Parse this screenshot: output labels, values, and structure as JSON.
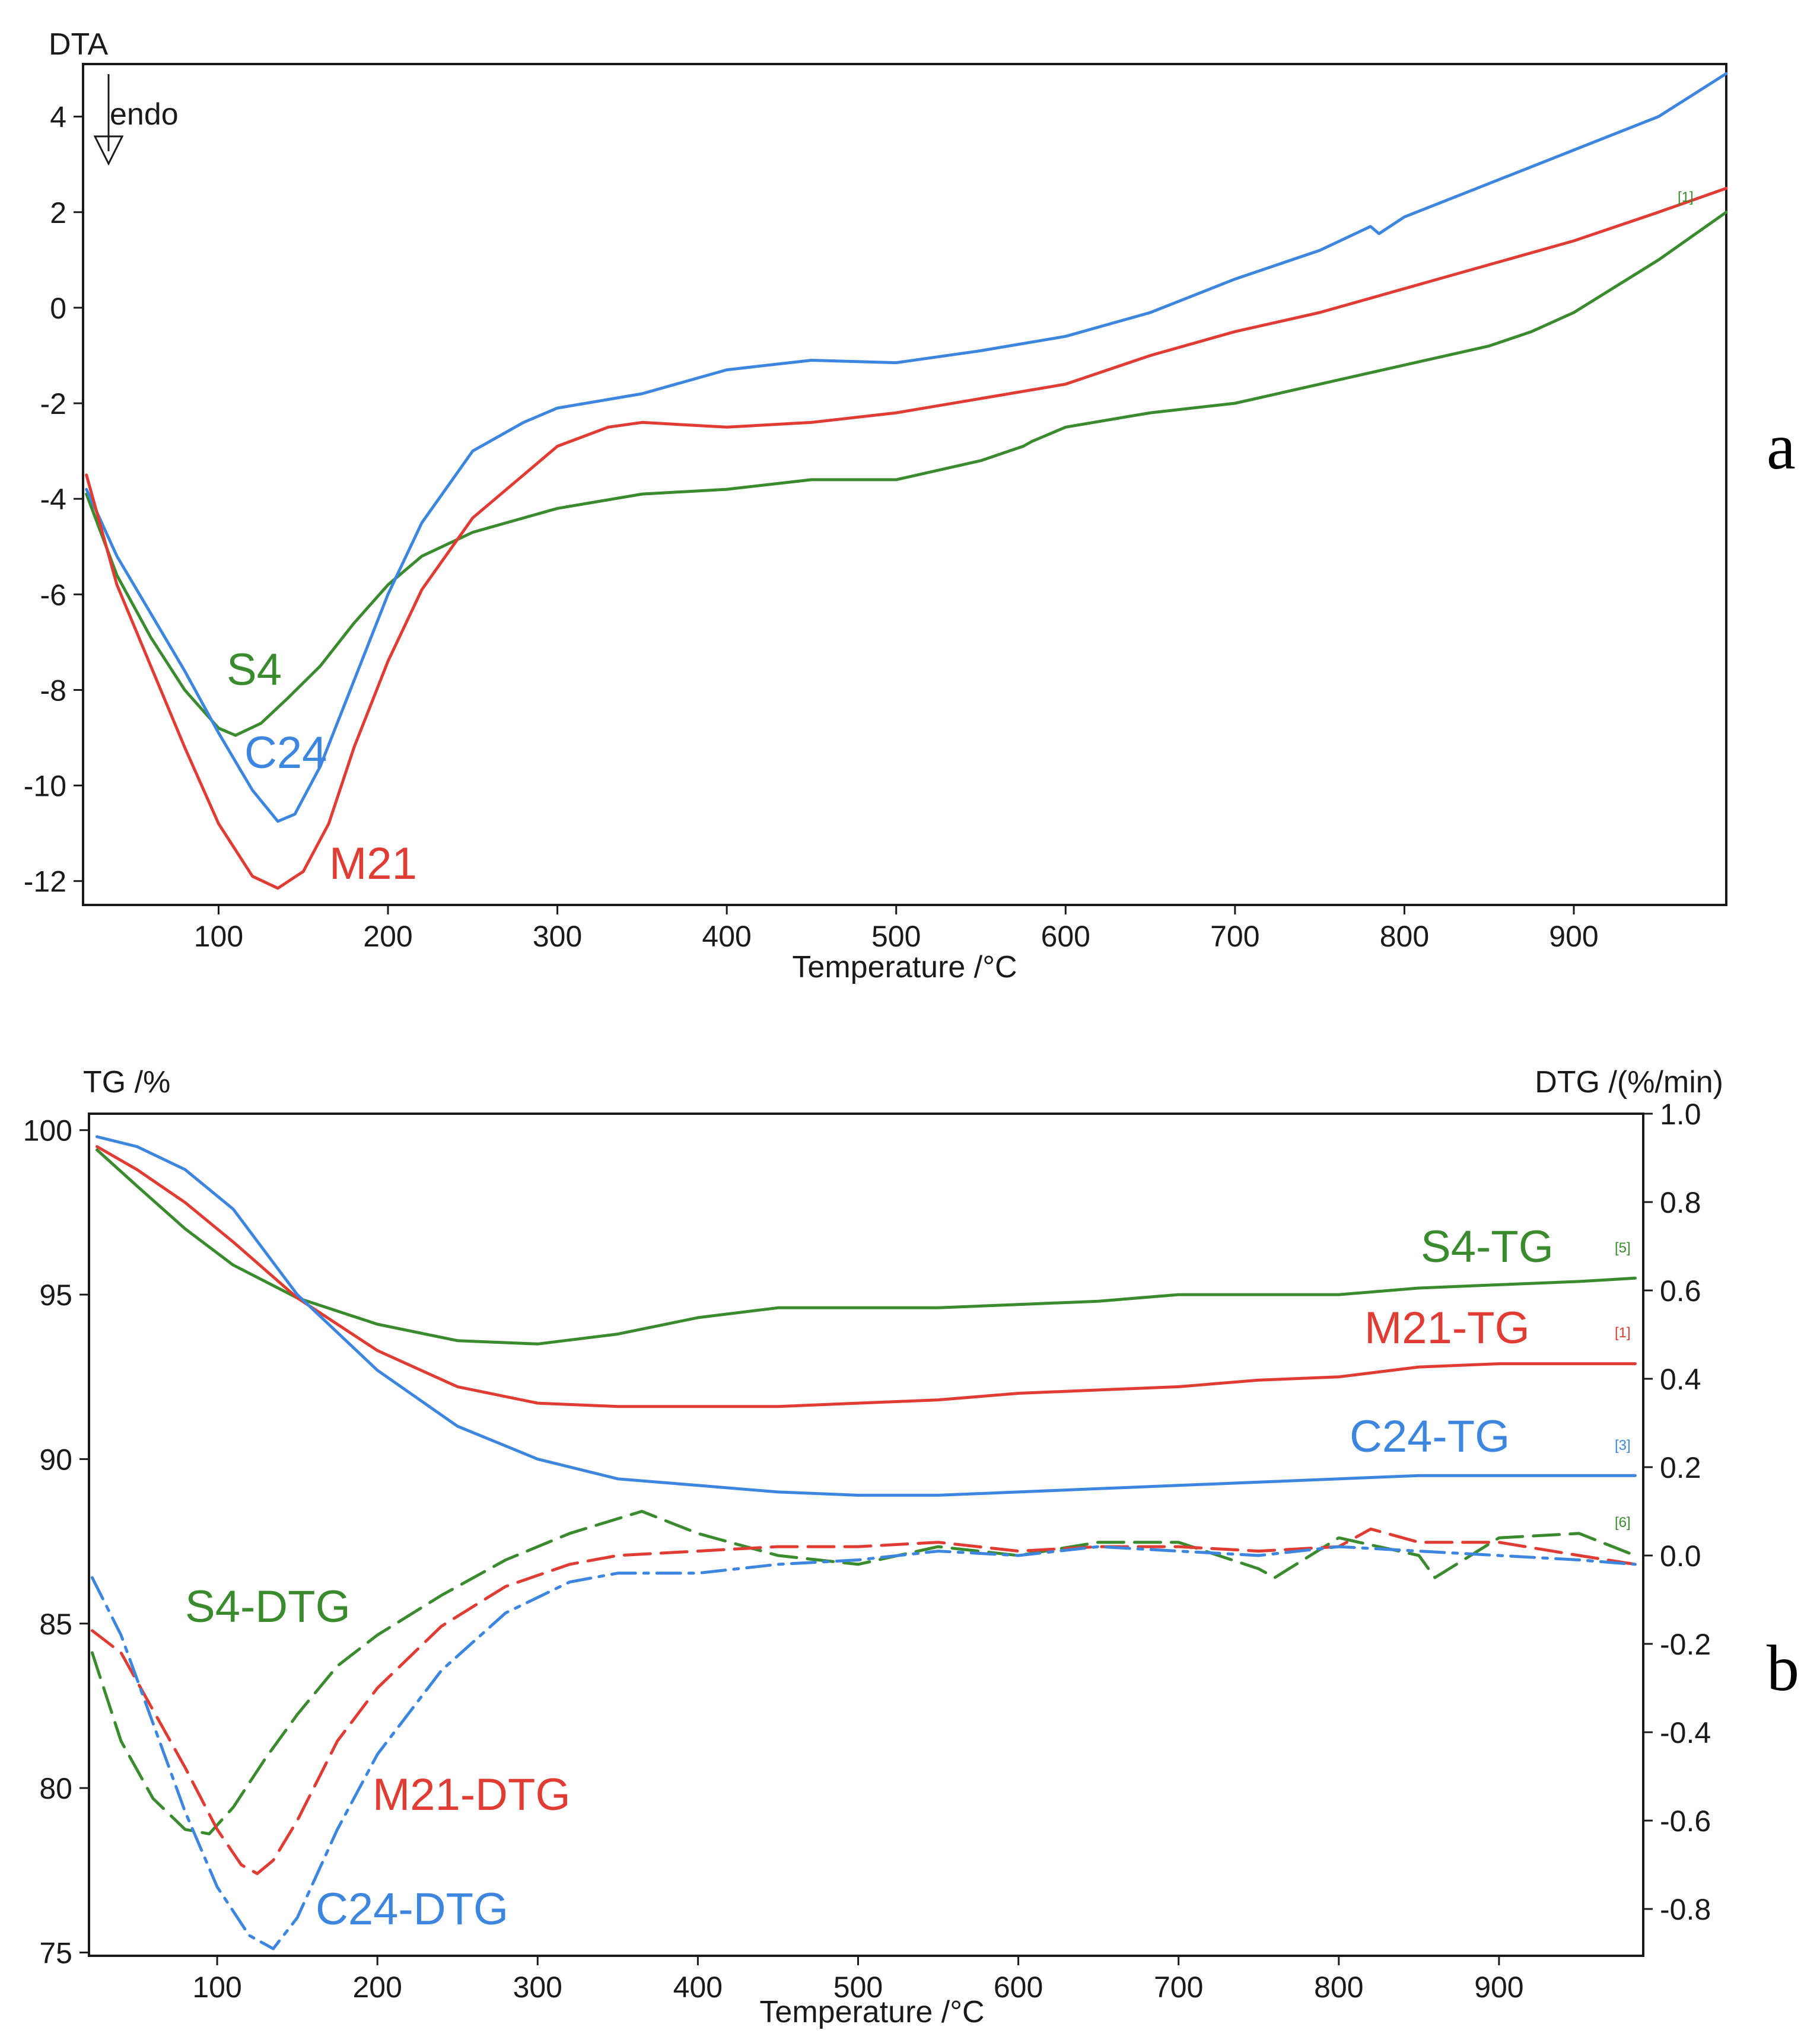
{
  "colors": {
    "green": "#3a8a2e",
    "red": "#e03c33",
    "blue": "#3d86e0",
    "axis": "#1a1a1a"
  },
  "chart_data": [
    {
      "type": "line",
      "panel_label": "a",
      "xlabel": "Temperature /°C",
      "ylabel": "DTA",
      "annotation": "endo",
      "end_marker": "[1]",
      "xlim": [
        20,
        990
      ],
      "ylim": [
        -12.5,
        5.1
      ],
      "xticks": [
        100,
        200,
        300,
        400,
        500,
        600,
        700,
        800,
        900
      ],
      "yticks": [
        4,
        2,
        0,
        -2,
        -4,
        -6,
        -8,
        -10,
        -12
      ],
      "series": [
        {
          "name": "S4",
          "color": "green",
          "x": [
            22,
            40,
            60,
            80,
            100,
            110,
            125,
            140,
            160,
            180,
            200,
            220,
            250,
            280,
            300,
            350,
            400,
            450,
            500,
            550,
            575,
            580,
            600,
            650,
            700,
            750,
            800,
            850,
            875,
            900,
            950,
            990
          ],
          "y": [
            -3.9,
            -5.6,
            -6.9,
            -8.0,
            -8.8,
            -8.95,
            -8.7,
            -8.2,
            -7.5,
            -6.6,
            -5.8,
            -5.2,
            -4.7,
            -4.4,
            -4.2,
            -3.9,
            -3.8,
            -3.6,
            -3.6,
            -3.2,
            -2.9,
            -2.8,
            -2.5,
            -2.2,
            -2.0,
            -1.6,
            -1.2,
            -0.8,
            -0.5,
            -0.1,
            1.0,
            2.0
          ]
        },
        {
          "name": "C24",
          "color": "blue",
          "x": [
            22,
            40,
            60,
            80,
            100,
            120,
            135,
            145,
            160,
            180,
            200,
            220,
            250,
            280,
            300,
            350,
            400,
            450,
            500,
            550,
            600,
            650,
            700,
            750,
            780,
            785,
            800,
            850,
            900,
            950,
            990
          ],
          "y": [
            -3.8,
            -5.2,
            -6.4,
            -7.6,
            -8.9,
            -10.1,
            -10.75,
            -10.6,
            -9.6,
            -7.8,
            -6.0,
            -4.5,
            -3.0,
            -2.4,
            -2.1,
            -1.8,
            -1.3,
            -1.1,
            -1.15,
            -0.9,
            -0.6,
            -0.1,
            0.6,
            1.2,
            1.7,
            1.55,
            1.9,
            2.6,
            3.3,
            4.0,
            4.9
          ]
        },
        {
          "name": "M21",
          "color": "red",
          "x": [
            22,
            40,
            60,
            80,
            100,
            120,
            135,
            150,
            165,
            180,
            200,
            220,
            250,
            280,
            300,
            330,
            350,
            400,
            450,
            500,
            550,
            600,
            650,
            700,
            750,
            800,
            850,
            900,
            950,
            990
          ],
          "y": [
            -3.5,
            -5.8,
            -7.5,
            -9.2,
            -10.8,
            -11.9,
            -12.15,
            -11.8,
            -10.8,
            -9.2,
            -7.4,
            -5.9,
            -4.4,
            -3.5,
            -2.9,
            -2.5,
            -2.4,
            -2.5,
            -2.4,
            -2.2,
            -1.9,
            -1.6,
            -1.0,
            -0.5,
            -0.1,
            0.4,
            0.9,
            1.4,
            2.0,
            2.5
          ]
        }
      ]
    },
    {
      "type": "line",
      "panel_label": "b",
      "xlabel": "Temperature /°C",
      "ylabel": "TG /%",
      "y2label": "DTG /(%/min)",
      "xlim": [
        20,
        990
      ],
      "ylim": [
        74.9,
        100.5
      ],
      "y2lim": [
        -0.906,
        1.0
      ],
      "xticks": [
        100,
        200,
        300,
        400,
        500,
        600,
        700,
        800,
        900
      ],
      "yticks": [
        100,
        95,
        90,
        85,
        80,
        75
      ],
      "y2ticks": [
        1.0,
        0.8,
        0.6,
        0.4,
        0.2,
        0.0,
        -0.2,
        -0.4,
        -0.6,
        -0.8
      ],
      "series": [
        {
          "name": "S4-TG",
          "axis": "left",
          "style": "solid",
          "color": "green",
          "marker": "[5]",
          "x": [
            25,
            50,
            80,
            110,
            150,
            200,
            250,
            300,
            350,
            400,
            450,
            500,
            550,
            600,
            650,
            700,
            750,
            800,
            850,
            900,
            950,
            985
          ],
          "y": [
            99.4,
            98.3,
            97.0,
            95.9,
            94.9,
            94.1,
            93.6,
            93.5,
            93.8,
            94.3,
            94.6,
            94.6,
            94.6,
            94.7,
            94.8,
            95.0,
            95.0,
            95.0,
            95.2,
            95.3,
            95.4,
            95.5
          ]
        },
        {
          "name": "M21-TG",
          "axis": "left",
          "style": "solid",
          "color": "red",
          "marker": "[1]",
          "x": [
            25,
            50,
            80,
            110,
            150,
            200,
            250,
            300,
            350,
            400,
            450,
            500,
            550,
            600,
            650,
            700,
            750,
            800,
            850,
            900,
            950,
            985
          ],
          "y": [
            99.5,
            98.8,
            97.8,
            96.6,
            94.9,
            93.3,
            92.2,
            91.7,
            91.6,
            91.6,
            91.6,
            91.7,
            91.8,
            92.0,
            92.1,
            92.2,
            92.4,
            92.5,
            92.8,
            92.9,
            92.9,
            92.9
          ]
        },
        {
          "name": "C24-TG",
          "axis": "left",
          "style": "solid",
          "color": "blue",
          "marker": "[3]",
          "x": [
            25,
            50,
            80,
            110,
            150,
            200,
            250,
            300,
            350,
            400,
            450,
            500,
            550,
            600,
            650,
            700,
            750,
            800,
            850,
            900,
            950,
            985
          ],
          "y": [
            99.8,
            99.5,
            98.8,
            97.6,
            95.0,
            92.7,
            91.0,
            90.0,
            89.4,
            89.2,
            89.0,
            88.9,
            88.9,
            89.0,
            89.1,
            89.2,
            89.3,
            89.4,
            89.5,
            89.5,
            89.5,
            89.5
          ]
        },
        {
          "name": "S4-DTG",
          "axis": "right",
          "style": "dash",
          "color": "green",
          "marker": "[6]",
          "x": [
            22,
            40,
            60,
            80,
            95,
            110,
            130,
            150,
            175,
            200,
            240,
            280,
            320,
            365,
            400,
            450,
            500,
            550,
            600,
            650,
            700,
            750,
            760,
            800,
            850,
            860,
            900,
            950,
            985
          ],
          "y": [
            -0.22,
            -0.42,
            -0.55,
            -0.62,
            -0.63,
            -0.57,
            -0.46,
            -0.36,
            -0.25,
            -0.18,
            -0.09,
            -0.01,
            0.05,
            0.1,
            0.05,
            0.0,
            -0.02,
            0.02,
            0.0,
            0.03,
            0.03,
            -0.03,
            -0.05,
            0.04,
            0.0,
            -0.05,
            0.04,
            0.05,
            0.0
          ]
        },
        {
          "name": "M21-DTG",
          "axis": "right",
          "style": "dash",
          "color": "red",
          "marker": "",
          "x": [
            22,
            40,
            60,
            80,
            100,
            115,
            125,
            135,
            150,
            175,
            200,
            240,
            280,
            320,
            350,
            400,
            450,
            500,
            550,
            600,
            650,
            700,
            750,
            800,
            820,
            850,
            900,
            950,
            985
          ],
          "y": [
            -0.17,
            -0.22,
            -0.35,
            -0.48,
            -0.62,
            -0.7,
            -0.72,
            -0.69,
            -0.6,
            -0.42,
            -0.3,
            -0.16,
            -0.07,
            -0.02,
            0.0,
            0.01,
            0.02,
            0.02,
            0.03,
            0.01,
            0.02,
            0.02,
            0.01,
            0.02,
            0.06,
            0.03,
            0.03,
            0.0,
            -0.02
          ]
        },
        {
          "name": "C24-DTG",
          "axis": "right",
          "style": "dashdot",
          "color": "blue",
          "marker": "",
          "x": [
            22,
            40,
            60,
            80,
            100,
            120,
            135,
            150,
            175,
            200,
            240,
            280,
            320,
            350,
            400,
            450,
            500,
            550,
            600,
            650,
            700,
            750,
            800,
            850,
            900,
            950,
            985
          ],
          "y": [
            -0.05,
            -0.18,
            -0.38,
            -0.58,
            -0.75,
            -0.86,
            -0.89,
            -0.82,
            -0.62,
            -0.45,
            -0.26,
            -0.13,
            -0.06,
            -0.04,
            -0.04,
            -0.02,
            -0.01,
            0.01,
            0.0,
            0.02,
            0.01,
            0.0,
            0.02,
            0.01,
            0.0,
            -0.01,
            -0.02
          ]
        }
      ]
    }
  ]
}
